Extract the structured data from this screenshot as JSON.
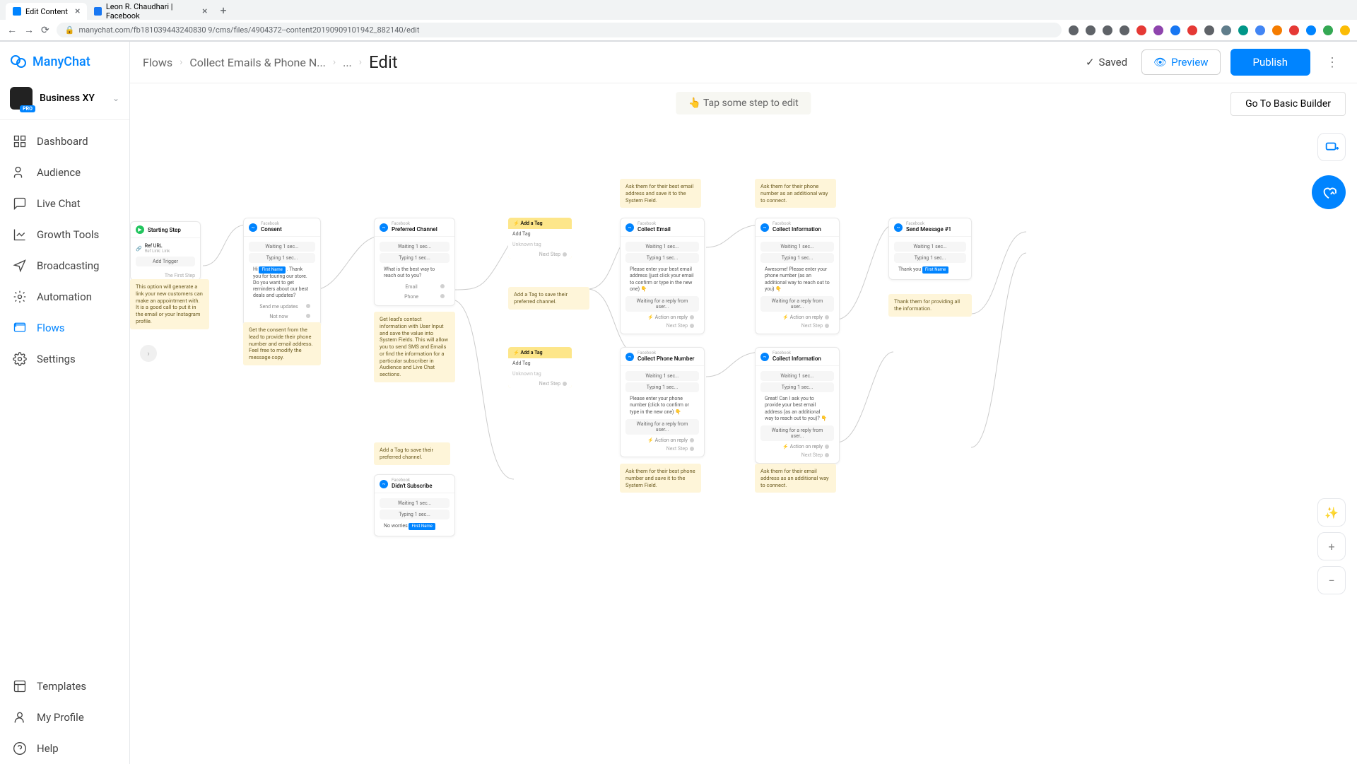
{
  "browser": {
    "tabs": [
      {
        "title": "Edit Content",
        "active": true,
        "favicon_bg": "#0084ff"
      },
      {
        "title": "Leon R. Chaudhari | Facebook",
        "active": false,
        "favicon_bg": "#1877f2"
      }
    ],
    "url": "manychat.com/fb181039443240830 9/cms/files/4904372--content20190909101942_882140/edit"
  },
  "brand": {
    "name": "ManyChat",
    "primary": "#0084ff"
  },
  "business": {
    "name": "Business XY",
    "badge": "PRO"
  },
  "nav": {
    "items": [
      {
        "key": "dashboard",
        "label": "Dashboard"
      },
      {
        "key": "audience",
        "label": "Audience"
      },
      {
        "key": "livechat",
        "label": "Live Chat"
      },
      {
        "key": "growth",
        "label": "Growth Tools"
      },
      {
        "key": "broadcasting",
        "label": "Broadcasting"
      },
      {
        "key": "automation",
        "label": "Automation"
      },
      {
        "key": "flows",
        "label": "Flows",
        "active": true
      },
      {
        "key": "settings",
        "label": "Settings"
      }
    ],
    "bottom": [
      {
        "key": "templates",
        "label": "Templates"
      },
      {
        "key": "profile",
        "label": "My Profile"
      },
      {
        "key": "help",
        "label": "Help"
      }
    ]
  },
  "breadcrumb": {
    "flows": "Flows",
    "flowname": "Collect Emails & Phone N...",
    "dots": "...",
    "edit": "Edit"
  },
  "topbar": {
    "saved": "Saved",
    "preview": "Preview",
    "publish": "Publish"
  },
  "canvas": {
    "hint": "👆 Tap some step to edit",
    "basic_builder": "Go To Basic Builder"
  },
  "cards": {
    "start": {
      "title": "Starting Step",
      "ref_url": "Ref URL",
      "ref_sub": "Ref Link: Link",
      "add_trigger": "Add Trigger",
      "first_step": "The First Step"
    },
    "consent": {
      "channel": "Facebook",
      "title": "Consent",
      "wait": "Waiting 1 sec...",
      "type": "Typing 1 sec...",
      "body": "Hi First Name . Thank you for touring our store. Do you want to get reminders about our best deals and updates?",
      "btn1": "Send me updates",
      "btn2": "Not now"
    },
    "preferred": {
      "channel": "Facebook",
      "title": "Preferred Channel",
      "wait": "Waiting 1 sec...",
      "type": "Typing 1 sec...",
      "q": "What is the best way to reach out to you?",
      "opt1": "Email",
      "opt2": "Phone"
    },
    "tag1": {
      "title": "⚡ Add a Tag",
      "row1": "Add Tag",
      "row2": "Unknown tag",
      "next": "Next Step"
    },
    "tag2": {
      "title": "⚡ Add a Tag",
      "row1": "Add Tag",
      "row2": "Unknown tag",
      "next": "Next Step"
    },
    "collect_email": {
      "channel": "Facebook",
      "title": "Collect Email",
      "wait": "Waiting 1 sec...",
      "type": "Typing 1 sec...",
      "body": "Please enter your best email address (just click your email to confirm or type in the new one) 👇",
      "reply": "Waiting for a reply from user...",
      "action": "⚡ Action on reply",
      "next": "Next Step"
    },
    "collect_phone": {
      "channel": "Facebook",
      "title": "Collect Phone Number",
      "wait": "Waiting 1 sec...",
      "type": "Typing 1 sec...",
      "body": "Please enter your phone number (click to confirm or type in the new one) 👇",
      "reply": "Waiting for a reply from user...",
      "action": "⚡ Action on reply",
      "next": "Next Step"
    },
    "collect_info1": {
      "channel": "Facebook",
      "title": "Collect Information",
      "wait": "Waiting 1 sec...",
      "type": "Typing 1 sec...",
      "body": "Awesome! Please enter your phone number (as an additional way to reach out to you) 👇",
      "reply": "Waiting for a reply from user...",
      "action": "⚡ Action on reply",
      "next": "Next Step"
    },
    "collect_info2": {
      "channel": "Facebook",
      "title": "Collect Information",
      "wait": "Waiting 1 sec...",
      "type": "Typing 1 sec...",
      "body": "Great! Can I ask you to provide your best email address (as an additional way to reach out to you)? 👇",
      "reply": "Waiting for a reply from user...",
      "action": "⚡ Action on reply",
      "next": "Next Step"
    },
    "send_msg": {
      "channel": "Facebook",
      "title": "Send Message #1",
      "wait": "Waiting 1 sec...",
      "type": "Typing 1 sec...",
      "body_pre": "Thank you ",
      "body_tag": "First Name"
    },
    "didnt_sub": {
      "channel": "Facebook",
      "title": "Didn't Subscribe",
      "wait": "Waiting 1 sec...",
      "type": "Typing 1 sec...",
      "body_pre": "No worries ",
      "body_tag": "First Name"
    }
  },
  "notes": {
    "n1": "This option will generate a link your new customers can make an appointment with. It is a good call to put it in the email or your Instagram profile.",
    "n2": "Get the consent from the lead to provide their phone number and email address. Feel free to modify the message copy.",
    "n3": "Get lead's contact information with User Input and save the value into System Fields. This will allow you to send SMS and Emails or find the information for a particular subscriber in Audience and Live Chat sections.",
    "n4": "Add a Tag to save their preferred channel.",
    "n5": "Add a Tag to save their preferred channel.",
    "n6": "Ask them for their best email address and save it to the System Field.",
    "n7": "Ask them for their best phone number and save it to the System Field.",
    "n8": "Ask them for their phone number as an additional way to connect.",
    "n9": "Ask them for their email address as an additional way to connect.",
    "n10": "Thank them for providing all the information."
  },
  "colors": {
    "note_bg": "#fef5d9",
    "note_text": "#6b5b20",
    "yellow_bg": "#fde68a",
    "edge": "#cccccc",
    "card_border": "#e8e8e8"
  },
  "url_bar_icons": [
    "#5f6368",
    "#5f6368",
    "#5f6368",
    "#5f6368",
    "#e53935",
    "#8e44ad",
    "#1877f2",
    "#e53935",
    "#5f6368",
    "#607d8b",
    "#009688",
    "#4285f4",
    "#f57c00",
    "#e53935",
    "#0084ff",
    "#34a853",
    "#fbbc05"
  ]
}
